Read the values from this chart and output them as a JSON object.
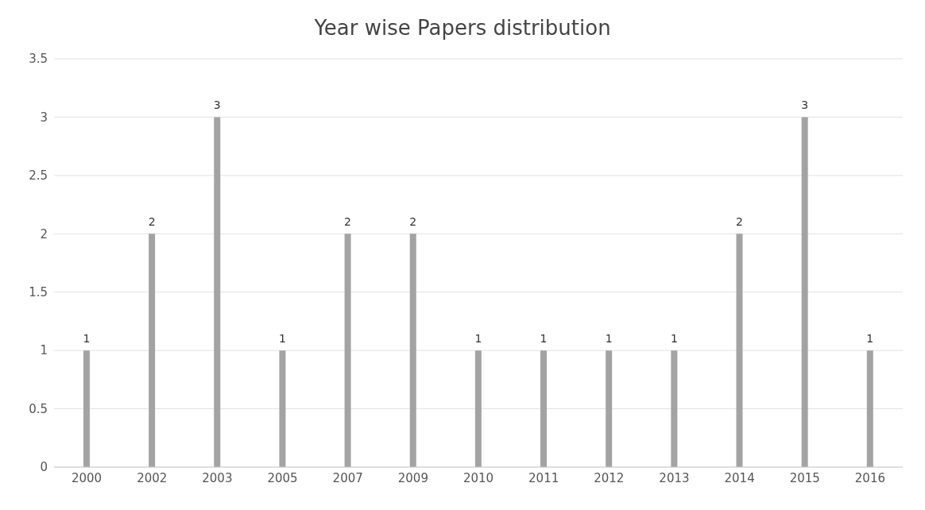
{
  "chart_data": {
    "type": "bar",
    "title": "Year wise Papers distribution",
    "categories": [
      "2000",
      "2002",
      "2003",
      "2005",
      "2007",
      "2009",
      "2010",
      "2011",
      "2012",
      "2013",
      "2014",
      "2015",
      "2016"
    ],
    "values": [
      1,
      2,
      3,
      1,
      2,
      2,
      1,
      1,
      1,
      1,
      2,
      3,
      1
    ],
    "color": "#a3a3a3",
    "ylim": [
      0,
      3.5
    ],
    "yticks": [
      0,
      0.5,
      1,
      1.5,
      2,
      2.5,
      3,
      3.5
    ],
    "grid": "y",
    "data_labels": true
  }
}
